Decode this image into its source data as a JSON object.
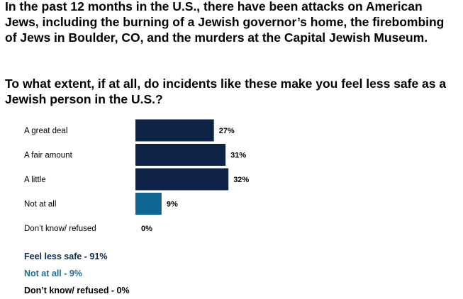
{
  "intro_text": "In the past 12 months in the U.S., there have been attacks on American Jews, including the burning of a Jewish governor’s home, the firebombing of Jews in Boulder, CO, and the murders at the Capital Jewish Museum.",
  "question_text": "To what extent, if at all, do incidents like these make you feel less safe as a Jewish person in the U.S.?",
  "summary": [
    {
      "text": "Feel less safe - 91%",
      "color": "#0d2b4e"
    },
    {
      "text": "Not at all - 9%",
      "color": "#1a6e96"
    },
    {
      "text": "Don’t know/ refused - 0%",
      "color": "#000000"
    }
  ],
  "chart_data": {
    "type": "bar",
    "orientation": "horizontal",
    "categories": [
      "A great deal",
      "A fair amount",
      "A little",
      "Not at all",
      "Don’t know/ refused"
    ],
    "values": [
      27,
      31,
      32,
      9,
      0
    ],
    "value_labels": [
      "27%",
      "31%",
      "32%",
      "9%",
      "0%"
    ],
    "bar_colors": [
      "#0d2448",
      "#0d2448",
      "#0d2448",
      "#0e6690",
      "#0d2448"
    ],
    "xlim": [
      0,
      100
    ],
    "grid": false,
    "legend": "none"
  }
}
